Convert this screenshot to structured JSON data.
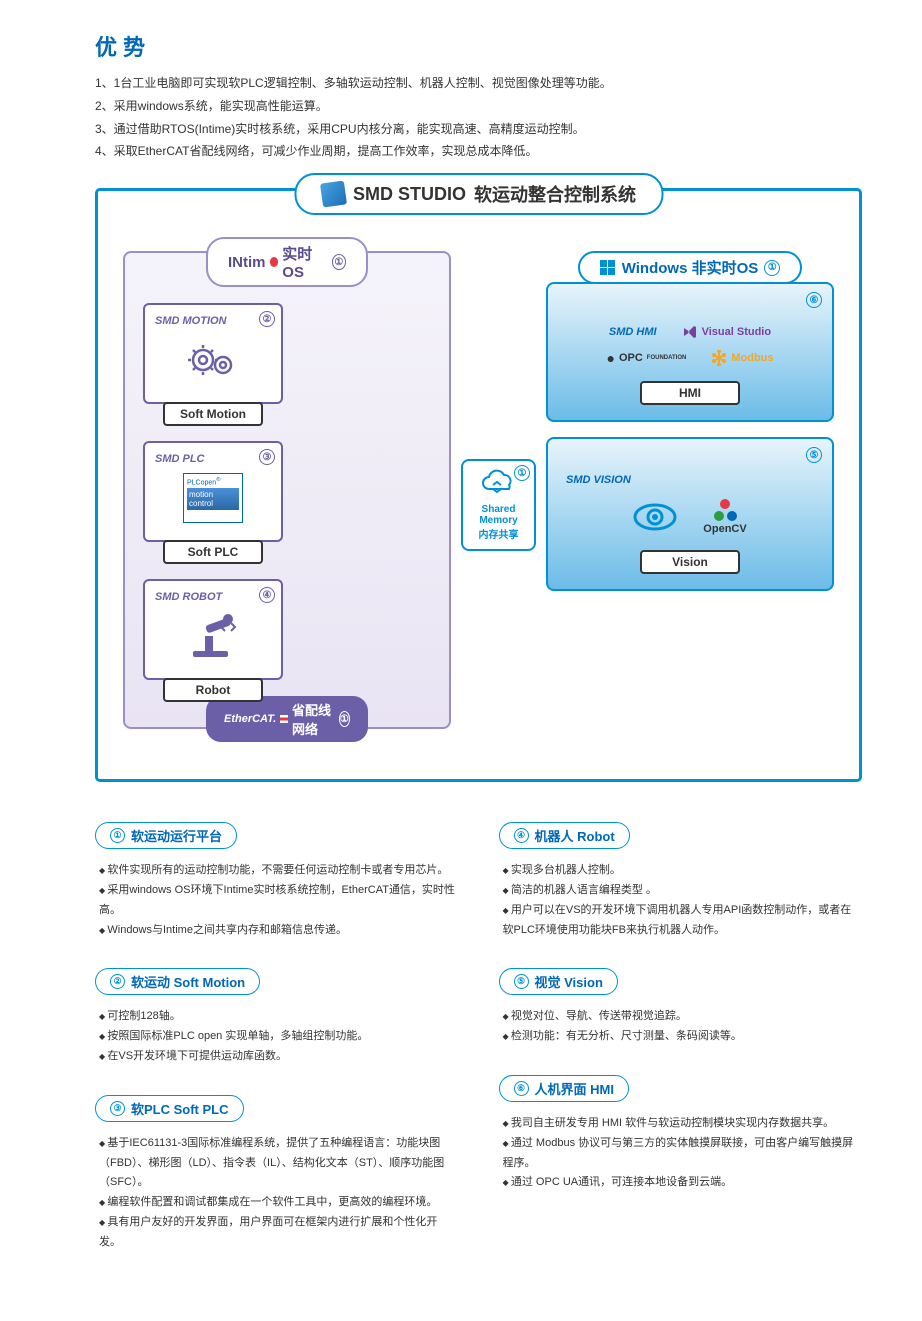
{
  "header": "优 势",
  "advantages": [
    "1、1台工业电脑即可实现软PLC逻辑控制、多轴软运动控制、机器人控制、视觉图像处理等功能。",
    "2、采用windows系统，能实现高性能运算。",
    "3、通过借助RTOS(Intime)实时核系统，采用CPU内核分离，能实现高速、高精度运动控制。",
    "4、采取EtherCAT省配线网络，可减少作业周期，提高工作效率，实现总成本降低。"
  ],
  "diagram": {
    "title_brand": "SMD STUDIO",
    "title_sub": "软运动整合控制系统",
    "left": {
      "title_pre": "INtim",
      "title_post": " 实时OS",
      "num": "①",
      "modules": [
        {
          "num": "②",
          "title": "SMD MOTION",
          "label": "Soft Motion",
          "icon": "gears"
        },
        {
          "num": "③",
          "title": "SMD PLC",
          "label": "Soft PLC",
          "icon": "plc"
        },
        {
          "num": "④",
          "title": "SMD ROBOT",
          "label": "Robot",
          "icon": "robot"
        }
      ],
      "ethercat_logo": "EtherCAT.",
      "ethercat_text": "省配线网络",
      "ethercat_num": "①"
    },
    "shared": {
      "num": "①",
      "l1": "Shared",
      "l2": "Memory",
      "l3": "内存共享"
    },
    "right": {
      "title": "Windows 非实时OS",
      "num": "①",
      "hmi": {
        "num": "⑥",
        "title": "SMD HMI",
        "label": "HMI",
        "logos": {
          "vs": "Visual Studio",
          "opc": "OPC",
          "opc_sub": "FOUNDATION",
          "modbus": "Modbus"
        }
      },
      "vision": {
        "num": "⑤",
        "title": "SMD VISION",
        "label": "Vision",
        "opencv": "OpenCV"
      }
    }
  },
  "sections_left": [
    {
      "num": "①",
      "title": "软运动运行平台",
      "items": [
        "软件实现所有的运动控制功能，不需要任何运动控制卡或者专用芯片。",
        "采用windows OS环境下Intime实时核系统控制，EtherCAT通信，实时性高。",
        "Windows与Intime之间共享内存和邮箱信息传递。"
      ]
    },
    {
      "num": "②",
      "title": "软运动  Soft Motion",
      "items": [
        "可控制128轴。",
        "按照国际标准PLC open 实现单轴，多轴组控制功能。",
        "在VS开发环境下可提供运动库函数。"
      ]
    },
    {
      "num": "③",
      "title": "软PLC  Soft PLC",
      "items": [
        "基于IEC61131-3国际标准编程系统，提供了五种编程语言：功能块图（FBD）、梯形图（LD）、指令表（IL）、结构化文本（ST）、顺序功能图（SFC）。",
        "编程软件配置和调试都集成在一个软件工具中，更高效的编程环境。",
        "具有用户友好的开发界面，用户界面可在框架内进行扩展和个性化开发。"
      ]
    }
  ],
  "sections_right": [
    {
      "num": "④",
      "title": "机器人 Robot",
      "items": [
        "实现多台机器人控制。",
        "简洁的机器人语言编程类型 。",
        "用户可以在VS的开发环境下调用机器人专用API函数控制动作，或者在软PLC环境使用功能块FB来执行机器人动作。"
      ]
    },
    {
      "num": "⑤",
      "title": "视觉 Vision",
      "items": [
        "视觉对位、导航、传送带视觉追踪。",
        "检测功能：有无分析、尺寸测量、条码阅读等。"
      ]
    },
    {
      "num": "⑥",
      "title": "人机界面  HMI",
      "items": [
        "我司自主研发专用 HMI 软件与软运动控制模块实现内存数据共享。",
        "通过 Modbus 协议可与第三方的实体触摸屏联接，可由客户编写触摸屏程序。",
        "通过 OPC UA通讯，可连接本地设备到云端。"
      ]
    }
  ],
  "colors": {
    "primary": "#0091d5",
    "purple": "#6b5fa8",
    "header": "#0068b7"
  }
}
